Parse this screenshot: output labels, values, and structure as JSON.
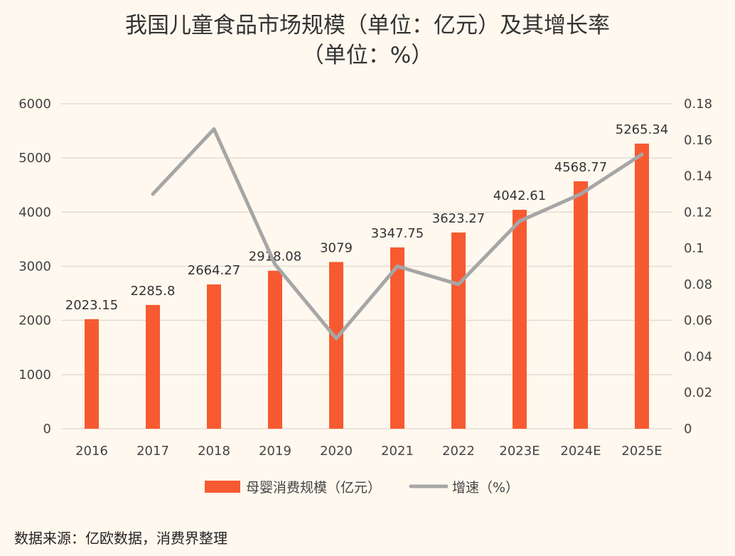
{
  "chart_data": {
    "type": "bar+line",
    "title_line1": "我国儿童食品市场规模（单位：亿元）及其增长率",
    "title_line2": "（单位：%）",
    "categories": [
      "2016",
      "2017",
      "2018",
      "2019",
      "2020",
      "2021",
      "2022",
      "2023E",
      "2024E",
      "2025E"
    ],
    "series": [
      {
        "name": "母婴消费规模（亿元）",
        "type": "bar",
        "axis": "left",
        "color": "#f75a30",
        "values": [
          2023.15,
          2285.8,
          2664.27,
          2918.08,
          3079,
          3347.75,
          3623.27,
          4042.61,
          4568.77,
          5265.34
        ],
        "labels": [
          "2023.15",
          "2285.8",
          "2664.27",
          "2918.08",
          "3079",
          "3347.75",
          "3623.27",
          "4042.61",
          "4568.77",
          "5265.34"
        ]
      },
      {
        "name": "增速（%）",
        "type": "line",
        "axis": "right",
        "color": "#a6a6a6",
        "values": [
          null,
          0.13,
          0.166,
          0.091,
          0.05,
          0.09,
          0.08,
          0.115,
          0.13,
          0.152
        ]
      }
    ],
    "y_left": {
      "range": [
        0,
        6000
      ],
      "ticks": [
        "0",
        "1000",
        "2000",
        "3000",
        "4000",
        "5000",
        "6000"
      ]
    },
    "y_right": {
      "range": [
        0,
        0.18
      ],
      "ticks": [
        "0",
        "0.02",
        "0.04",
        "0.06",
        "0.08",
        "0.1",
        "0.12",
        "0.14",
        "0.16",
        "0.18"
      ]
    },
    "grid": true,
    "legend_position": "bottom"
  },
  "source": "数据来源：亿欧数据，消费界整理"
}
